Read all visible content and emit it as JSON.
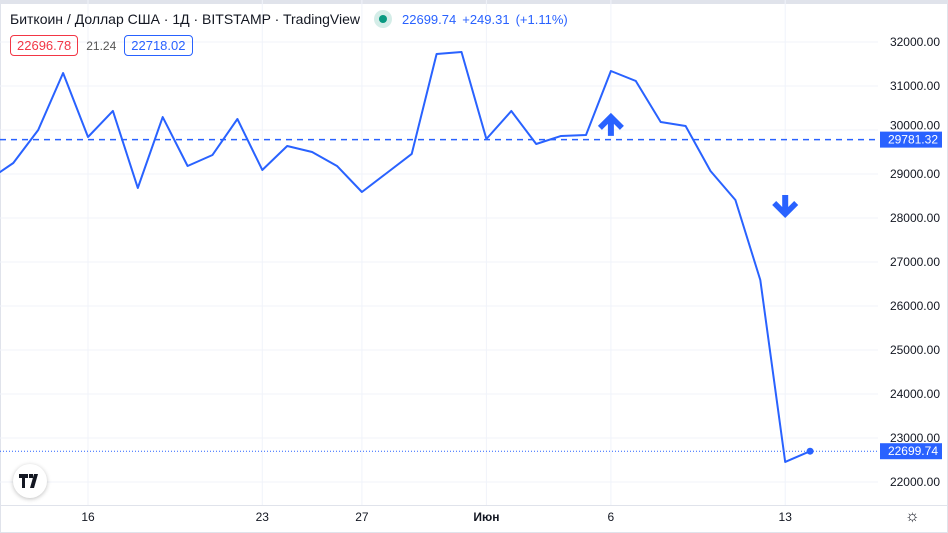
{
  "header": {
    "title": "Биткоин / Доллар США · 1Д · BITSTAMP · TradingView",
    "last_price": "22699.74",
    "change": "+249.31",
    "change_pct": "(+1.11%)",
    "bid": "22696.78",
    "spread": "21.24",
    "ask": "22718.02"
  },
  "colors": {
    "line": "#2962ff",
    "bid": "#f23645",
    "status": "#089981"
  },
  "icons": {
    "logo": "tradingview-logo",
    "settings": "gear-icon"
  },
  "logo_text": "TV",
  "chart_data": {
    "type": "line",
    "title": "Биткоин / Доллар США · 1Д · BITSTAMP",
    "days": [
      12,
      13,
      14,
      15,
      16,
      17,
      18,
      19,
      20,
      21,
      22,
      23,
      24,
      25,
      26,
      27,
      28,
      29,
      30,
      31,
      32,
      33,
      34,
      35,
      36,
      37,
      38,
      39,
      40,
      41,
      42,
      43,
      44,
      45
    ],
    "values": [
      28864,
      29250,
      30000,
      31295,
      29841,
      30432,
      28682,
      30295,
      29182,
      29432,
      30250,
      29091,
      29636,
      29500,
      29182,
      28591,
      29023,
      29455,
      31727,
      31773,
      29795,
      30432,
      29682,
      29864,
      29886,
      31341,
      31114,
      30182,
      30091,
      29068,
      28409,
      26591,
      22455,
      22699.74
    ],
    "x_ticks": [
      {
        "day": 16,
        "label": "16"
      },
      {
        "day": 23,
        "label": "23"
      },
      {
        "day": 27,
        "label": "27"
      },
      {
        "day": 32,
        "label": "Июн"
      },
      {
        "day": 37,
        "label": "6"
      },
      {
        "day": 44,
        "label": "13"
      }
    ],
    "y_ticks": [
      "32000.00",
      "31000.00",
      "30000.00",
      "29000.00",
      "28000.00",
      "27000.00",
      "26000.00",
      "25000.00",
      "24000.00",
      "23000.00",
      "22000.00"
    ],
    "ylim": [
      22000,
      32000
    ],
    "horizontal_line": {
      "value": 29781.32,
      "label": "29781.32",
      "style": "dashed"
    },
    "last_price_line": {
      "value": 22699.74,
      "label": "22699.74",
      "style": "dotted"
    },
    "annotations": [
      {
        "type": "arrow-up",
        "day": 37,
        "value": 30140
      },
      {
        "type": "arrow-down",
        "day": 44,
        "value": 28250
      }
    ]
  }
}
